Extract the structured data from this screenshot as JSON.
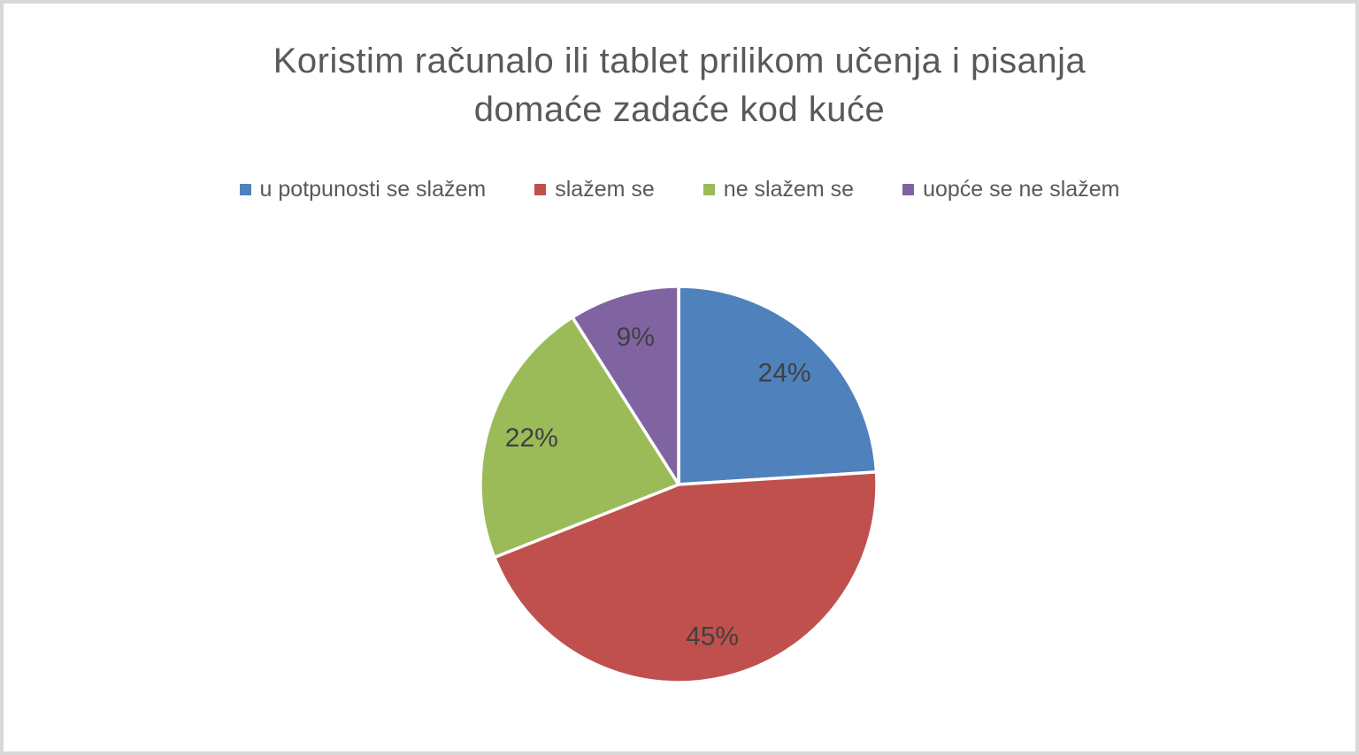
{
  "frame": {
    "background_color": "#ffffff",
    "border_color": "#d8d8d8"
  },
  "title_lines": [
    "Koristim računalo ili tablet prilikom učenja i pisanja",
    "domaće zadaće kod kuće"
  ],
  "title_color": "#595959",
  "legend": {
    "position": "top",
    "text_color": "#595959",
    "items": [
      {
        "label": "u potpunosti se slažem",
        "color": "#4F81BD"
      },
      {
        "label": "slažem se",
        "color": "#C0504D"
      },
      {
        "label": "ne slažem se",
        "color": "#9BBB59"
      },
      {
        "label": "uopće se ne slažem",
        "color": "#8064A2"
      }
    ]
  },
  "chart_data": {
    "type": "pie",
    "title": "Koristim računalo ili tablet prilikom učenja i pisanja domaće zadaće kod kuće",
    "categories": [
      "u potpunosti se slažem",
      "slažem se",
      "ne slažem se",
      "uopće se ne slažem"
    ],
    "values": [
      24,
      45,
      22,
      9
    ],
    "data_labels": [
      "24%",
      "45%",
      "22%",
      "9%"
    ],
    "colors": [
      "#4F81BD",
      "#C0504D",
      "#9BBB59",
      "#8064A2"
    ],
    "start_angle_deg": 0,
    "direction": "clockwise",
    "slice_border_color": "#ffffff",
    "label_color": "#404040",
    "legend_position": "top",
    "grid": false
  }
}
